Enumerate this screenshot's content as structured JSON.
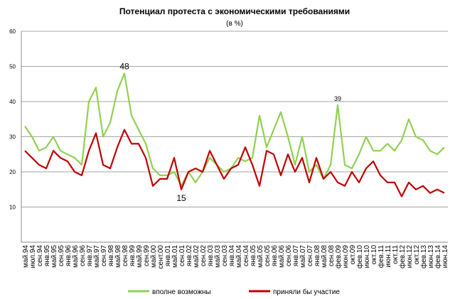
{
  "chart_data": {
    "type": "line",
    "title": "Потенциал протеста с экономическими требованиями",
    "subtitle": "(в %)",
    "categories": [
      "май.94",
      "июл.94",
      "сен.94",
      "янв.95",
      "май.95",
      "сен.95",
      "янв.96",
      "май.96",
      "сен.96",
      "янв.97",
      "май.97",
      "сен.97",
      "янв.98",
      "май.98",
      "сен.98",
      "янв.99",
      "май.99",
      "сен.99",
      "май.00",
      "сент.00",
      "янв.01",
      "май.01",
      "сен.01",
      "янв.02",
      "май.02",
      "сен.02",
      "янв.03",
      "май.03",
      "сен.03",
      "янв.04",
      "май.04",
      "сен.04",
      "янв.05",
      "май.05",
      "сен.05",
      "янв.06",
      "май.06",
      "сен.06",
      "янв.07",
      "май.07",
      "сен.07",
      "янв.08",
      "май.08",
      "сен.08",
      "фев.09",
      "июн.09",
      "окт.09",
      "фев.10",
      "июн.10",
      "окт.10",
      "фев.11",
      "июн.11",
      "окт.11",
      "фев.12",
      "июн.12",
      "окт.12",
      "фев.13",
      "июн.13",
      "фев.14",
      "июн.14"
    ],
    "series": [
      {
        "name": "вполне возможны",
        "color": "#92d050",
        "values": [
          33,
          30,
          26,
          27,
          30,
          26,
          25,
          24,
          22,
          40,
          44,
          30,
          34,
          43,
          48,
          36,
          32,
          28,
          21,
          19,
          19,
          20,
          16,
          20,
          17,
          20,
          24,
          22,
          20,
          21,
          24,
          23,
          24,
          36,
          27,
          32,
          37,
          30,
          22,
          30,
          20,
          22,
          18,
          22,
          39,
          22,
          21,
          25,
          30,
          26,
          26,
          28,
          26,
          29,
          35,
          30,
          29,
          26,
          25,
          27
        ],
        "value_labels": [
          null,
          null,
          null,
          null,
          null,
          null,
          null,
          null,
          null,
          null,
          null,
          null,
          null,
          null,
          "48",
          null,
          null,
          null,
          null,
          null,
          null,
          null,
          null,
          null,
          null,
          null,
          null,
          null,
          null,
          null,
          null,
          null,
          null,
          null,
          null,
          null,
          null,
          null,
          null,
          null,
          null,
          null,
          null,
          null,
          "39",
          null,
          null,
          null,
          null,
          null,
          null,
          null,
          null,
          null,
          null,
          null,
          null,
          null,
          null,
          null
        ]
      },
      {
        "name": "приняли бы участие",
        "color": "#c00000",
        "values": [
          26,
          24,
          22,
          21,
          26,
          24,
          23,
          20,
          19,
          26,
          31,
          22,
          21,
          27,
          32,
          28,
          28,
          24,
          16,
          18,
          18,
          24,
          15,
          20,
          21,
          20,
          26,
          22,
          18,
          21,
          22,
          27,
          22,
          16,
          26,
          25,
          19,
          25,
          20,
          24,
          17,
          24,
          18,
          20,
          17,
          16,
          20,
          17,
          21,
          23,
          19,
          17,
          17,
          13,
          17,
          15,
          16,
          14,
          15,
          14
        ],
        "value_labels": [
          null,
          null,
          null,
          null,
          null,
          null,
          null,
          null,
          null,
          null,
          null,
          null,
          null,
          null,
          null,
          null,
          null,
          null,
          null,
          null,
          null,
          null,
          "15",
          null,
          null,
          null,
          null,
          null,
          null,
          null,
          null,
          null,
          null,
          null,
          null,
          null,
          null,
          null,
          null,
          null,
          null,
          null,
          null,
          null,
          null,
          null,
          null,
          null,
          null,
          null,
          null,
          null,
          null,
          null,
          null,
          null,
          null,
          null,
          null,
          null
        ]
      }
    ],
    "ylim": [
      0,
      60
    ],
    "yticks": [
      10,
      20,
      30,
      40,
      50,
      60
    ],
    "grid": true,
    "legend": "bottom"
  }
}
